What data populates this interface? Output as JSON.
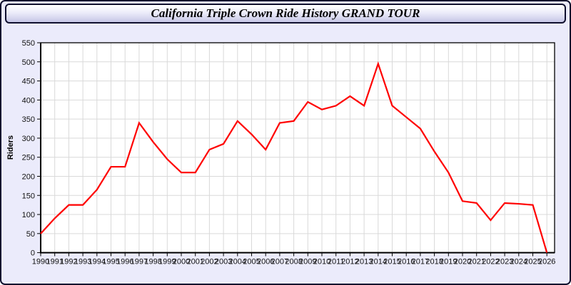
{
  "window": {
    "title": "California Triple Crown Ride History GRAND TOUR"
  },
  "colors": {
    "line": "#ff0000",
    "plot_background": "#ffffff",
    "gridline": "#d9d9d9",
    "axis": "#000000",
    "page_background": "#ebebfb",
    "titlebar_border": "#10102e",
    "tick_label": "#111111"
  },
  "chart_data": {
    "type": "line",
    "title": "California Triple Crown Ride History GRAND TOUR",
    "xlabel": "",
    "ylabel": "Riders",
    "x": [
      1990,
      1991,
      1992,
      1993,
      1994,
      1995,
      1996,
      1997,
      1998,
      1999,
      2000,
      2001,
      2002,
      2003,
      2004,
      2005,
      2006,
      2007,
      2008,
      2009,
      2010,
      2011,
      2012,
      2013,
      2014,
      2015,
      2016,
      2017,
      2018,
      2019,
      2020,
      2021,
      2022,
      2023,
      2024,
      2025,
      2026
    ],
    "series": [
      {
        "name": "Riders",
        "color": "#ff0000",
        "values": [
          50,
          90,
          125,
          125,
          165,
          225,
          225,
          340,
          290,
          245,
          210,
          210,
          270,
          285,
          345,
          310,
          270,
          340,
          345,
          395,
          375,
          385,
          410,
          385,
          495,
          385,
          355,
          325,
          265,
          210,
          135,
          130,
          85,
          130,
          128,
          125,
          0
        ]
      }
    ],
    "ylim": [
      0,
      550
    ],
    "yticks": [
      0,
      50,
      100,
      150,
      200,
      250,
      300,
      350,
      400,
      450,
      500,
      550
    ],
    "grid": true,
    "legend": "none"
  }
}
